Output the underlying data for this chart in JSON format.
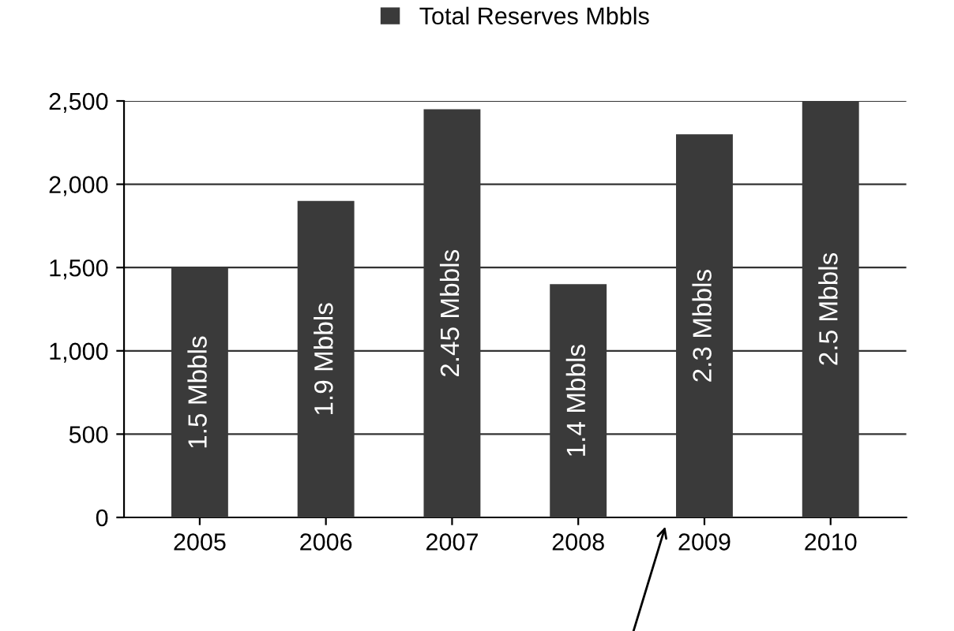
{
  "chart_data": {
    "type": "bar",
    "categories": [
      "2005",
      "2006",
      "2007",
      "2008",
      "2009",
      "2010"
    ],
    "series": [
      {
        "name": "Total Reserves Mbbls",
        "color": "#3a3a3a",
        "values": [
          1500,
          1900,
          2450,
          1400,
          2300,
          2500
        ]
      }
    ],
    "annotations": [
      "1.5 Mbbls",
      "1.9 Mbbls",
      "2.45 Mbbls",
      "1.4 Mbbls",
      "2.3 Mbbls",
      "2.5 Mbbls"
    ],
    "ylim": [
      0,
      2500
    ],
    "yticks": [
      0,
      500,
      {
        "value": 1000,
        "label": "1,000"
      },
      {
        "value": 1500,
        "label": "1,500"
      },
      {
        "value": 2000,
        "label": "2,000"
      },
      {
        "value": 2500,
        "label": "2,500"
      }
    ],
    "grid": "y",
    "legend": "top"
  }
}
